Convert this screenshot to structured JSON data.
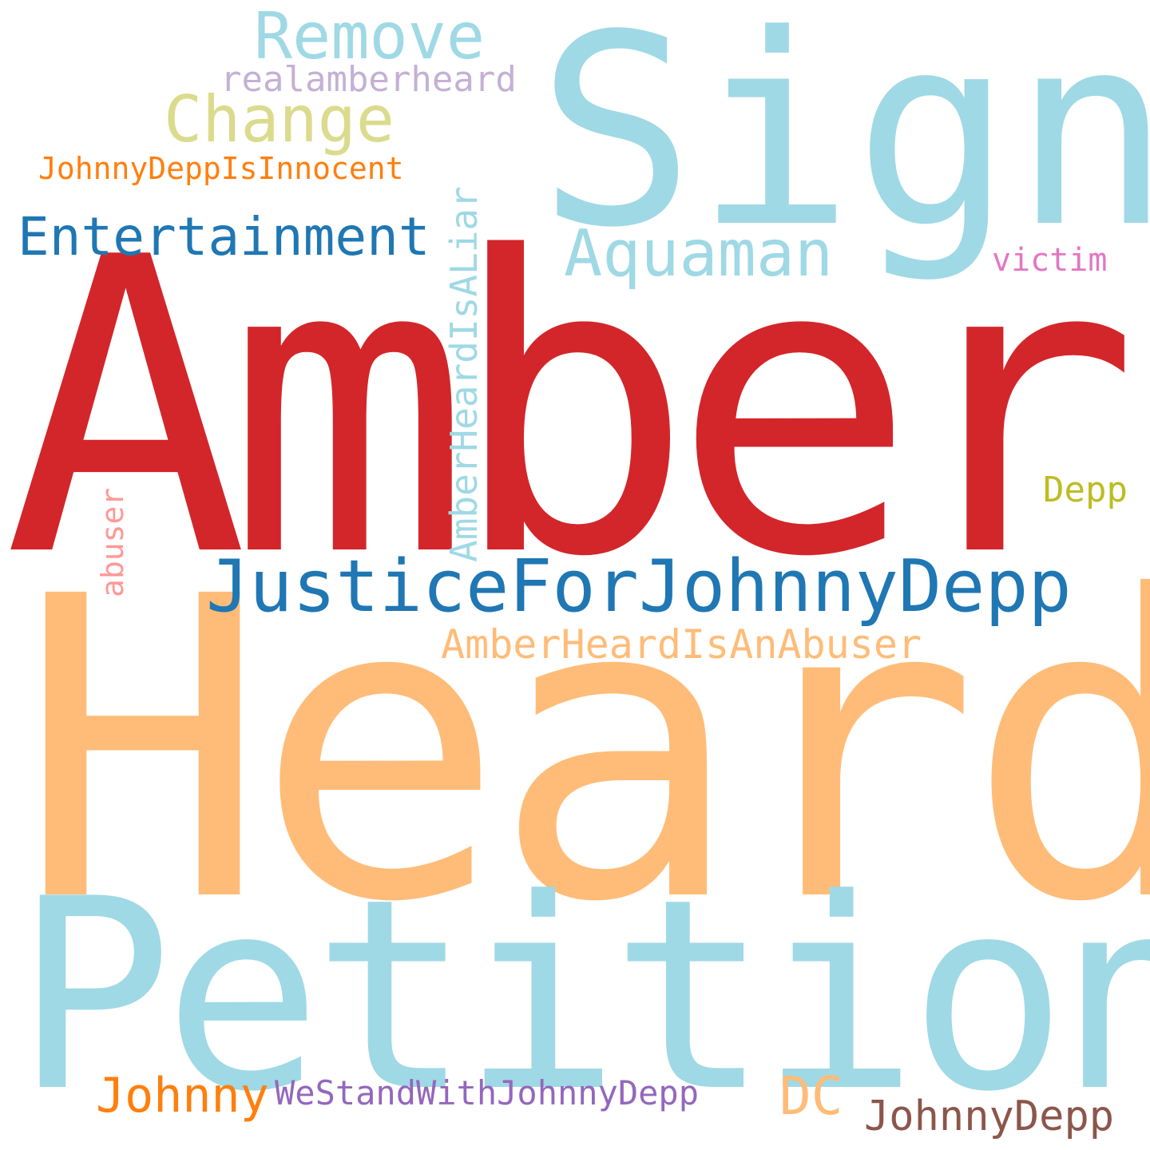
{
  "words": [
    {
      "id": "sign",
      "text": "Sign",
      "color": "#9fd9e5"
    },
    {
      "id": "amber",
      "text": "Amber",
      "color": "#d3262a"
    },
    {
      "id": "heard",
      "text": "Heard",
      "color": "#ffbc78"
    },
    {
      "id": "petition",
      "text": "Petition",
      "color": "#9fd9e5"
    },
    {
      "id": "remove",
      "text": "Remove",
      "color": "#9fd9e5"
    },
    {
      "id": "realamberheard",
      "text": "realamberheard",
      "color": "#c5b0d5"
    },
    {
      "id": "change",
      "text": "Change",
      "color": "#dbdb8d"
    },
    {
      "id": "johnnydeppisinnocent",
      "text": "JohnnyDeppIsInnocent",
      "color": "#ff7f0e"
    },
    {
      "id": "entertainment",
      "text": "Entertainment",
      "color": "#1f77b4"
    },
    {
      "id": "aquaman",
      "text": "Aquaman",
      "color": "#9fd9e5"
    },
    {
      "id": "victim",
      "text": "victim",
      "color": "#e377c2"
    },
    {
      "id": "amberheardisaliar",
      "text": "AmberHeardIsALiar",
      "color": "#9fd9e5"
    },
    {
      "id": "abuser",
      "text": "abuser",
      "color": "#ff9896"
    },
    {
      "id": "depp",
      "text": "Depp",
      "color": "#bcbd22"
    },
    {
      "id": "justiceforjohnnydepp",
      "text": "JusticeForJohnnyDepp",
      "color": "#1f77b4"
    },
    {
      "id": "amberheardisanabuser",
      "text": "AmberHeardIsAnAbuser",
      "color": "#ffbc78"
    },
    {
      "id": "johnny",
      "text": "Johnny",
      "color": "#ff7f0e"
    },
    {
      "id": "westandwithjohnnydepp",
      "text": "WeStandWithJohnnyDepp",
      "color": "#9467bd"
    },
    {
      "id": "dc",
      "text": "DC",
      "color": "#ffbc78"
    },
    {
      "id": "johnnydepp",
      "text": "JohnnyDepp",
      "color": "#8c564b"
    }
  ]
}
